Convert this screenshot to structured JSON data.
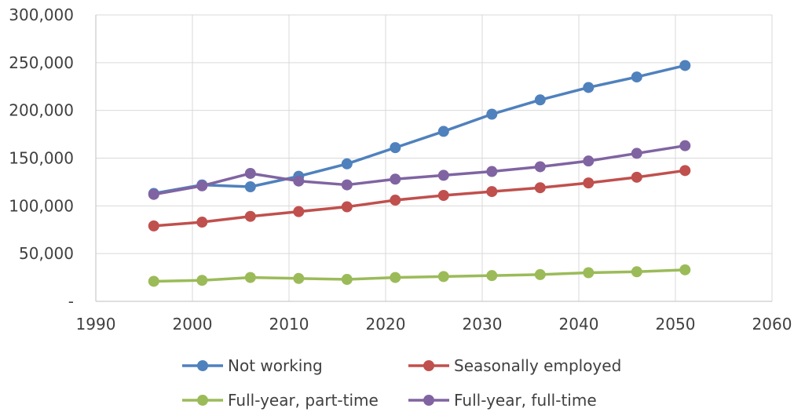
{
  "chart_data": {
    "type": "line",
    "title": "",
    "xlabel": "",
    "ylabel": "",
    "xlim": [
      1990,
      2060
    ],
    "ylim": [
      0,
      300000
    ],
    "x_ticks": [
      1990,
      2000,
      2010,
      2020,
      2030,
      2040,
      2050,
      2060
    ],
    "x_tick_labels": [
      "1990",
      "2000",
      "2010",
      "2020",
      "2030",
      "2040",
      "2050",
      "2060"
    ],
    "y_ticks": [
      0,
      50000,
      100000,
      150000,
      200000,
      250000,
      300000
    ],
    "y_tick_labels": [
      "-",
      "50,000",
      "100,000",
      "150,000",
      "200,000",
      "250,000",
      "300,000"
    ],
    "grid": true,
    "legend_position": "bottom",
    "x": [
      1996,
      2001,
      2006,
      2011,
      2016,
      2021,
      2026,
      2031,
      2036,
      2041,
      2046,
      2051
    ],
    "series": [
      {
        "name": "Not working",
        "color": "#4f81bd",
        "values": [
          113000,
          122000,
          120000,
          131000,
          144000,
          161000,
          178000,
          196000,
          211000,
          224000,
          235000,
          247000
        ]
      },
      {
        "name": "Seasonally employed",
        "color": "#c0504d",
        "values": [
          79000,
          83000,
          89000,
          94000,
          99000,
          106000,
          111000,
          115000,
          119000,
          124000,
          130000,
          137000
        ]
      },
      {
        "name": "Full-year, part-time",
        "color": "#9bbb59",
        "values": [
          21000,
          22000,
          25000,
          24000,
          23000,
          25000,
          26000,
          27000,
          28000,
          30000,
          31000,
          33000
        ]
      },
      {
        "name": "Full-year, full-time",
        "color": "#8064a2",
        "values": [
          112000,
          121000,
          134000,
          126000,
          122000,
          128000,
          132000,
          136000,
          141000,
          147000,
          155000,
          163000
        ]
      }
    ]
  }
}
